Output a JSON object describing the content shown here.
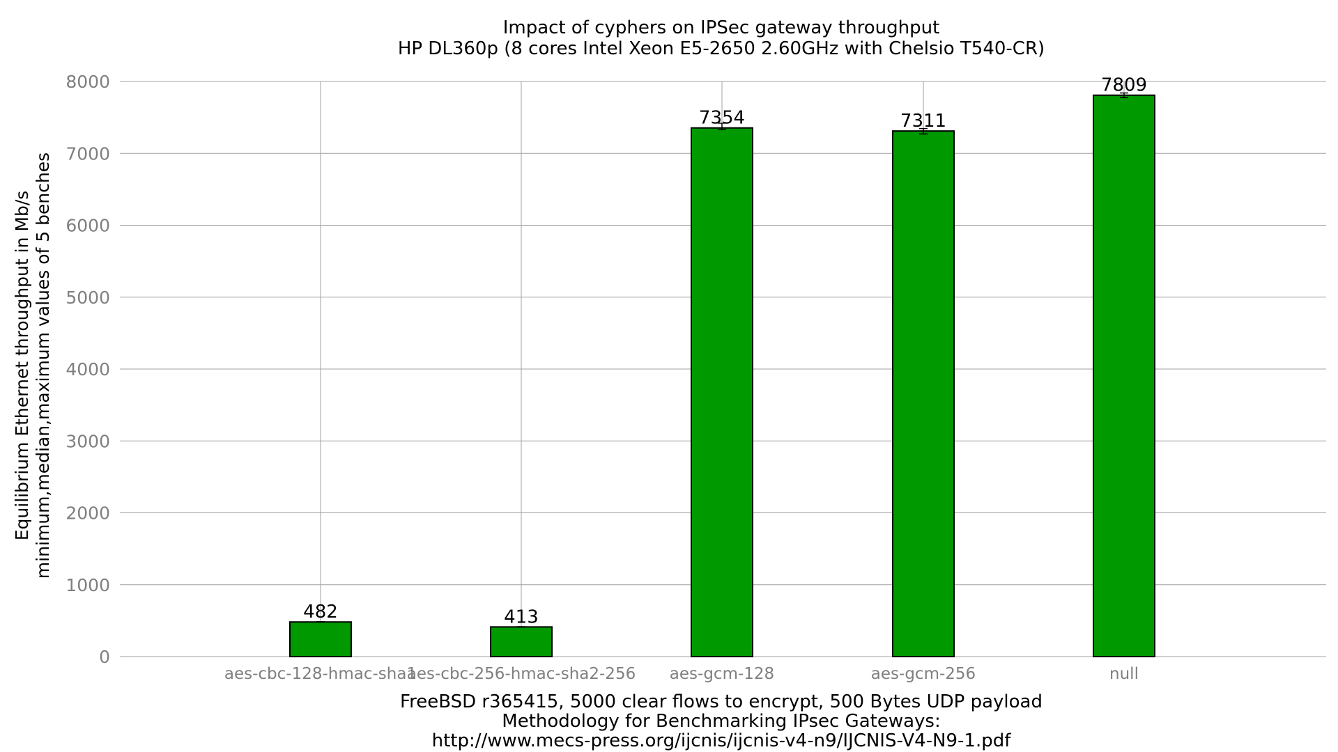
{
  "chart_data": {
    "type": "bar",
    "title": [
      "Impact of cyphers on IPSec gateway throughput",
      "HP DL360p (8 cores Intel Xeon E5-2650 2.60GHz with Chelsio T540-CR)"
    ],
    "ylabel": [
      "Equilibrium Ethernet throughput in Mb/s",
      "minimum,median,maximum values of 5 benches"
    ],
    "xlabel": [
      "FreeBSD r365415, 5000 clear flows to encrypt, 500 Bytes UDP payload",
      "Methodology for Benchmarking IPsec Gateways:",
      "http://www.mecs-press.org/ijcnis/ijcnis-v4-n9/IJCNIS-V4-N9-1.pdf"
    ],
    "categories": [
      "aes-cbc-128-hmac-sha1",
      "aes-cbc-256-hmac-sha2-256",
      "aes-gcm-128",
      "aes-gcm-256",
      "null"
    ],
    "values": [
      482,
      413,
      7354,
      7311,
      7809
    ],
    "error_min": [
      480,
      410,
      7330,
      7270,
      7775
    ],
    "error_max": [
      485,
      416,
      7420,
      7345,
      7840
    ],
    "value_labels": [
      "482",
      "413",
      "7354",
      "7311",
      "7809"
    ],
    "ylim": [
      0,
      8000
    ],
    "yticks": [
      0,
      1000,
      2000,
      3000,
      4000,
      5000,
      6000,
      7000,
      8000
    ],
    "grid": true,
    "bar_color": "#009900",
    "bar_edge_color": "#000000",
    "grid_color": "#a0a0a0"
  }
}
